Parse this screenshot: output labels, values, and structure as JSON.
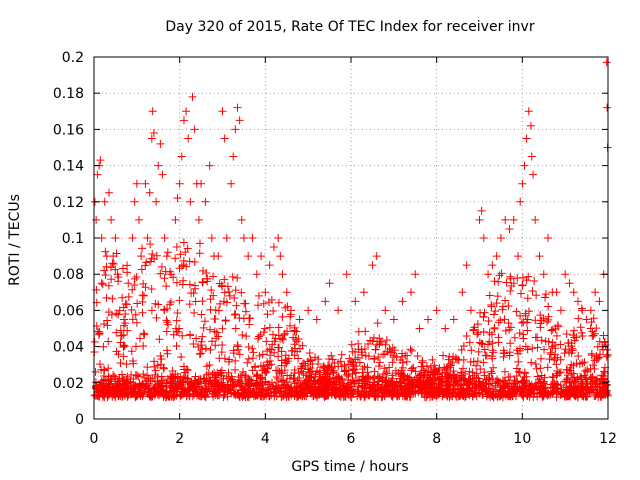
{
  "chart_data": {
    "type": "scatter",
    "title": "Day 320 of 2015, Rate Of TEC Index for receiver invr",
    "xlabel": "GPS time / hours",
    "ylabel": "ROTI / TECUs",
    "xlim": [
      0,
      12
    ],
    "ylim": [
      0,
      0.2
    ],
    "xticks": [
      0,
      2,
      4,
      6,
      8,
      10,
      12
    ],
    "yticks": [
      0,
      0.02,
      0.04,
      0.06,
      0.08,
      0.1,
      0.12,
      0.14,
      0.16,
      0.18,
      0.2
    ],
    "grid": true,
    "marker": "+",
    "marker_color": "#ff0000",
    "series": [
      {
        "name": "ROTI",
        "points": [
          [
            0.02,
            0.12
          ],
          [
            0.05,
            0.11
          ],
          [
            0.08,
            0.135
          ],
          [
            0.12,
            0.14
          ],
          [
            0.15,
            0.143
          ],
          [
            0.18,
            0.1
          ],
          [
            0.25,
            0.12
          ],
          [
            0.3,
            0.09
          ],
          [
            0.35,
            0.125
          ],
          [
            0.4,
            0.11
          ],
          [
            0.45,
            0.09
          ],
          [
            0.5,
            0.1
          ],
          [
            0.55,
            0.08
          ],
          [
            0.6,
            0.06
          ],
          [
            0.7,
            0.055
          ],
          [
            0.8,
            0.075
          ],
          [
            0.9,
            0.1
          ],
          [
            0.95,
            0.12
          ],
          [
            1.0,
            0.13
          ],
          [
            1.05,
            0.11
          ],
          [
            1.1,
            0.09
          ],
          [
            1.2,
            0.13
          ],
          [
            1.25,
            0.1
          ],
          [
            1.3,
            0.125
          ],
          [
            1.35,
            0.155
          ],
          [
            1.37,
            0.17
          ],
          [
            1.4,
            0.158
          ],
          [
            1.45,
            0.12
          ],
          [
            1.5,
            0.14
          ],
          [
            1.55,
            0.152
          ],
          [
            1.6,
            0.135
          ],
          [
            1.65,
            0.1
          ],
          [
            1.7,
            0.09
          ],
          [
            1.8,
            0.08
          ],
          [
            1.9,
            0.11
          ],
          [
            1.95,
            0.122
          ],
          [
            2.0,
            0.13
          ],
          [
            2.05,
            0.145
          ],
          [
            2.1,
            0.165
          ],
          [
            2.15,
            0.17
          ],
          [
            2.2,
            0.155
          ],
          [
            2.25,
            0.12
          ],
          [
            2.3,
            0.178
          ],
          [
            2.35,
            0.16
          ],
          [
            2.4,
            0.13
          ],
          [
            2.45,
            0.11
          ],
          [
            2.5,
            0.13
          ],
          [
            2.6,
            0.12
          ],
          [
            2.7,
            0.14
          ],
          [
            2.75,
            0.1
          ],
          [
            2.8,
            0.09
          ],
          [
            2.9,
            0.09
          ],
          [
            3.0,
            0.17
          ],
          [
            3.05,
            0.155
          ],
          [
            3.1,
            0.1
          ],
          [
            3.2,
            0.13
          ],
          [
            3.25,
            0.145
          ],
          [
            3.3,
            0.16
          ],
          [
            3.35,
            0.172
          ],
          [
            3.4,
            0.165
          ],
          [
            3.45,
            0.11
          ],
          [
            3.5,
            0.1
          ],
          [
            3.6,
            0.09
          ],
          [
            3.7,
            0.1
          ],
          [
            3.8,
            0.08
          ],
          [
            3.9,
            0.09
          ],
          [
            4.0,
            0.07
          ],
          [
            4.1,
            0.085
          ],
          [
            4.2,
            0.095
          ],
          [
            4.3,
            0.1
          ],
          [
            4.35,
            0.09
          ],
          [
            4.4,
            0.08
          ],
          [
            4.5,
            0.07
          ],
          [
            4.6,
            0.06
          ],
          [
            4.8,
            0.055
          ],
          [
            5.0,
            0.06
          ],
          [
            5.2,
            0.055
          ],
          [
            5.4,
            0.065
          ],
          [
            5.5,
            0.075
          ],
          [
            5.7,
            0.06
          ],
          [
            5.9,
            0.08
          ],
          [
            6.1,
            0.065
          ],
          [
            6.3,
            0.07
          ],
          [
            6.5,
            0.085
          ],
          [
            6.6,
            0.09
          ],
          [
            6.8,
            0.06
          ],
          [
            7.0,
            0.055
          ],
          [
            7.2,
            0.065
          ],
          [
            7.4,
            0.07
          ],
          [
            7.5,
            0.08
          ],
          [
            7.6,
            0.05
          ],
          [
            7.8,
            0.055
          ],
          [
            8.0,
            0.06
          ],
          [
            8.2,
            0.05
          ],
          [
            8.4,
            0.055
          ],
          [
            8.6,
            0.07
          ],
          [
            8.7,
            0.085
          ],
          [
            8.8,
            0.06
          ],
          [
            9.0,
            0.11
          ],
          [
            9.05,
            0.115
          ],
          [
            9.1,
            0.1
          ],
          [
            9.2,
            0.08
          ],
          [
            9.3,
            0.085
          ],
          [
            9.4,
            0.09
          ],
          [
            9.5,
            0.1
          ],
          [
            9.6,
            0.11
          ],
          [
            9.7,
            0.105
          ],
          [
            9.8,
            0.11
          ],
          [
            9.9,
            0.09
          ],
          [
            9.95,
            0.12
          ],
          [
            10.0,
            0.13
          ],
          [
            10.05,
            0.14
          ],
          [
            10.1,
            0.155
          ],
          [
            10.15,
            0.17
          ],
          [
            10.2,
            0.162
          ],
          [
            10.22,
            0.145
          ],
          [
            10.25,
            0.135
          ],
          [
            10.3,
            0.11
          ],
          [
            10.4,
            0.09
          ],
          [
            10.5,
            0.08
          ],
          [
            10.6,
            0.1
          ],
          [
            10.7,
            0.07
          ],
          [
            10.8,
            0.07
          ],
          [
            10.9,
            0.06
          ],
          [
            11.0,
            0.08
          ],
          [
            11.1,
            0.075
          ],
          [
            11.2,
            0.07
          ],
          [
            11.3,
            0.065
          ],
          [
            11.4,
            0.06
          ],
          [
            11.5,
            0.055
          ],
          [
            11.6,
            0.06
          ],
          [
            11.7,
            0.07
          ],
          [
            11.8,
            0.065
          ],
          [
            11.9,
            0.08
          ],
          [
            11.97,
            0.197
          ],
          [
            11.98,
            0.172
          ],
          [
            11.99,
            0.15
          ]
        ]
      }
    ]
  }
}
